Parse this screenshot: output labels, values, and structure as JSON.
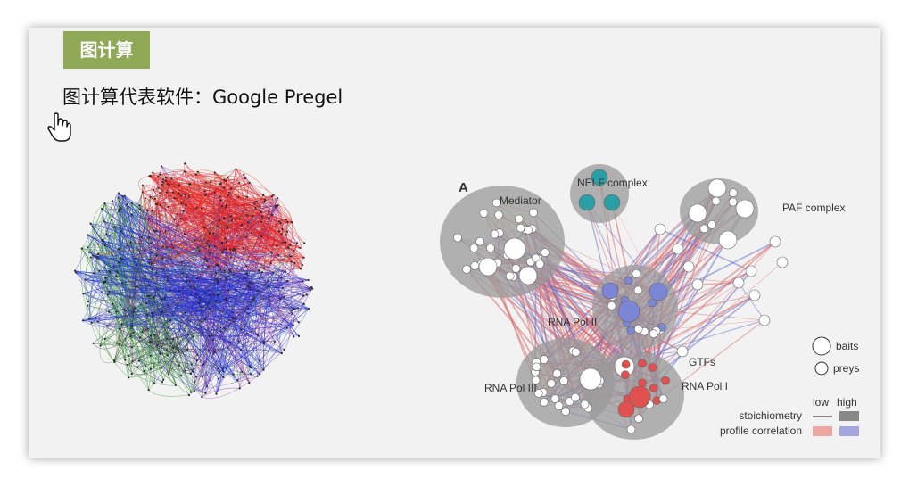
{
  "slide": {
    "section_tag": "图计算",
    "heading": "图计算代表软件：Google Pregel"
  },
  "icons": {
    "cursor": "hand-pointer-icon"
  },
  "network_figure": {
    "colors": [
      "#e8201c",
      "#1c2fd8",
      "#7a2a9a",
      "#2a8a2a",
      "#222222"
    ]
  },
  "complex_figure": {
    "panel_letter": "A",
    "labels": {
      "mediator": "Mediator",
      "nelf": "NELF complex",
      "paf": "PAF complex",
      "rnapol2": "RNA Pol II",
      "gtfs": "GTFs",
      "rnapol3": "RNA Pol III",
      "rnapol1": "RNA Pol I"
    },
    "legend": {
      "baits": "baits",
      "preys": "preys",
      "low": "low",
      "high": "high",
      "stoichiometry": "stoichiometry",
      "profile_correlation": "profile correlation"
    },
    "colors": {
      "cluster": "#9a9a9a",
      "nelf_fill": "#2a9fa6",
      "bait_blue": "#7d86d6",
      "bait_red": "#e0504f",
      "edge_red": "#d96a6a",
      "edge_blue": "#6670c8",
      "legend_low_grey": "#888888",
      "legend_high_grey": "#888888",
      "legend_low_pink": "#eda5a2",
      "legend_high_blue": "#a3a7dd"
    }
  }
}
